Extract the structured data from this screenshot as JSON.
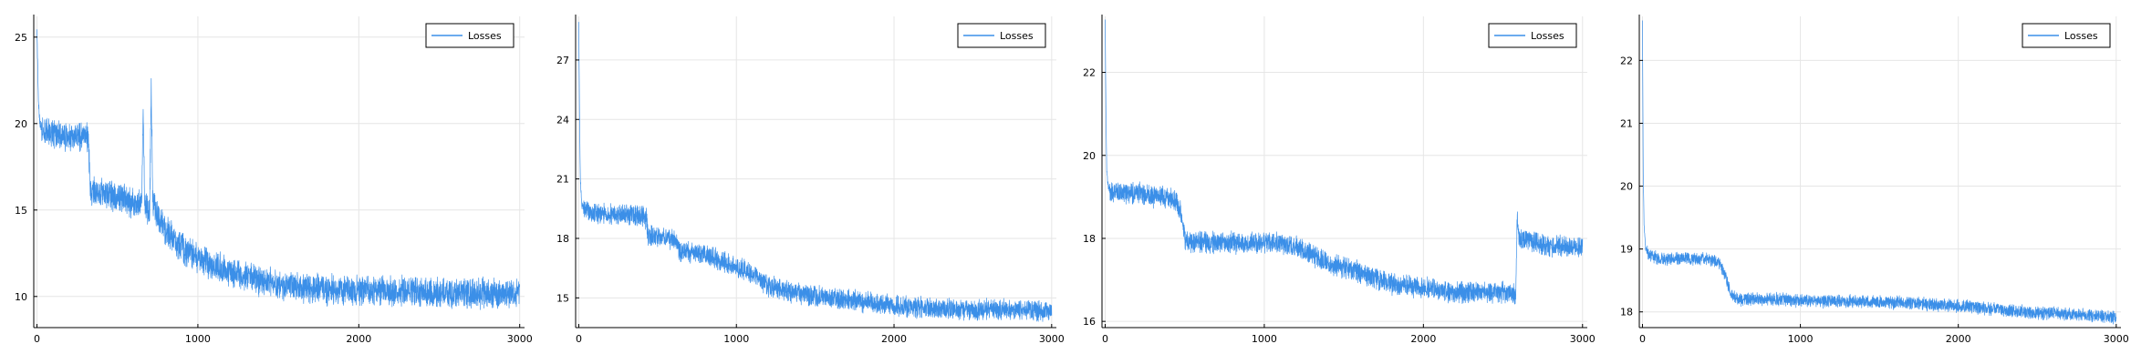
{
  "colors": {
    "series": "#3b8fe8",
    "grid": "#e6e6e6",
    "axis": "#000000"
  },
  "chart_data": [
    {
      "type": "line",
      "title": "",
      "xlabel": "",
      "ylabel": "",
      "xlim": [
        -20,
        3030
      ],
      "ylim": [
        8.2,
        26.2
      ],
      "xticks": [
        0,
        1000,
        2000,
        3000
      ],
      "xtick_labels": [
        "0",
        "1000",
        "2000",
        "3000"
      ],
      "yticks": [
        10,
        15,
        20,
        25
      ],
      "ytick_labels": [
        "10",
        "15",
        "20",
        "25"
      ],
      "grid": true,
      "legend": {
        "position": "top-right",
        "entries": [
          "Losses"
        ]
      },
      "series": [
        {
          "name": "Losses",
          "x": [
            0,
            5,
            10,
            20,
            40,
            80,
            150,
            250,
            320,
            330,
            400,
            500,
            600,
            650,
            660,
            670,
            700,
            710,
            720,
            740,
            800,
            900,
            1000,
            1100,
            1200,
            1300,
            1400,
            1600,
            1800,
            2000,
            2200,
            2400,
            2600,
            2800,
            3000
          ],
          "y": [
            25.3,
            23,
            21,
            19.8,
            19.6,
            19.4,
            19.3,
            19.2,
            19.2,
            16.2,
            16.0,
            15.8,
            15.4,
            15.2,
            20.8,
            15.2,
            15.0,
            22.1,
            15.5,
            14.8,
            13.8,
            12.8,
            12.2,
            11.8,
            11.4,
            11.1,
            10.9,
            10.6,
            10.4,
            10.3,
            10.3,
            10.2,
            10.2,
            10.2,
            10.2
          ],
          "noise": 1.0
        }
      ]
    },
    {
      "type": "line",
      "title": "",
      "xlabel": "",
      "ylabel": "",
      "xlim": [
        -20,
        3030
      ],
      "ylim": [
        13.5,
        29.2
      ],
      "xticks": [
        0,
        1000,
        2000,
        3000
      ],
      "xtick_labels": [
        "0",
        "1000",
        "2000",
        "3000"
      ],
      "yticks": [
        15,
        18,
        21,
        24,
        27
      ],
      "ytick_labels": [
        "15",
        "18",
        "21",
        "24",
        "27"
      ],
      "grid": true,
      "legend": {
        "position": "top-right",
        "entries": [
          "Losses"
        ]
      },
      "series": [
        {
          "name": "Losses",
          "x": [
            0,
            5,
            10,
            20,
            50,
            100,
            200,
            300,
            400,
            430,
            440,
            460,
            500,
            600,
            640,
            700,
            800,
            900,
            1000,
            1100,
            1200,
            1400,
            1600,
            1800,
            2000,
            2200,
            2400,
            2600,
            2800,
            3000
          ],
          "y": [
            28.8,
            24,
            21,
            19.6,
            19.4,
            19.3,
            19.2,
            19.2,
            19.1,
            19.0,
            18.0,
            18.1,
            18.1,
            18.0,
            17.4,
            17.3,
            17.2,
            16.9,
            16.6,
            16.2,
            15.6,
            15.2,
            15.0,
            14.8,
            14.6,
            14.5,
            14.4,
            14.4,
            14.4,
            14.3
          ],
          "noise": 0.6
        }
      ]
    },
    {
      "type": "line",
      "title": "",
      "xlabel": "",
      "ylabel": "",
      "xlim": [
        -20,
        3030
      ],
      "ylim": [
        15.85,
        23.35
      ],
      "xticks": [
        0,
        1000,
        2000,
        3000
      ],
      "xtick_labels": [
        "0",
        "1000",
        "2000",
        "3000"
      ],
      "yticks": [
        16,
        18,
        20,
        22
      ],
      "ytick_labels": [
        "16",
        "18",
        "20",
        "22"
      ],
      "grid": true,
      "legend": {
        "position": "top-right",
        "entries": [
          "Losses"
        ]
      },
      "series": [
        {
          "name": "Losses",
          "x": [
            0,
            5,
            10,
            20,
            50,
            100,
            200,
            300,
            400,
            450,
            480,
            500,
            520,
            600,
            800,
            1000,
            1200,
            1300,
            1400,
            1600,
            1800,
            2000,
            2200,
            2400,
            2550,
            2580,
            2590,
            2600,
            2700,
            2800,
            3000
          ],
          "y": [
            23.2,
            21,
            19.6,
            19.2,
            19.1,
            19.1,
            19.1,
            19.0,
            19.0,
            18.9,
            18.6,
            18.0,
            17.9,
            17.9,
            17.9,
            17.9,
            17.8,
            17.6,
            17.4,
            17.2,
            16.9,
            16.8,
            16.7,
            16.7,
            16.7,
            16.6,
            18.6,
            18.0,
            17.9,
            17.8,
            17.8
          ],
          "noise": 0.3
        }
      ]
    },
    {
      "type": "line",
      "title": "",
      "xlabel": "",
      "ylabel": "",
      "xlim": [
        -20,
        3030
      ],
      "ylim": [
        17.75,
        22.7
      ],
      "xticks": [
        0,
        1000,
        2000,
        3000
      ],
      "xtick_labels": [
        "0",
        "1000",
        "2000",
        "3000"
      ],
      "yticks": [
        18,
        19,
        20,
        21,
        22
      ],
      "ytick_labels": [
        "18",
        "19",
        "20",
        "21",
        "22"
      ],
      "grid": true,
      "legend": {
        "position": "top-right",
        "entries": [
          "Losses"
        ]
      },
      "series": [
        {
          "name": "Losses",
          "x": [
            0,
            5,
            10,
            20,
            50,
            100,
            200,
            300,
            400,
            480,
            520,
            560,
            600,
            700,
            800,
            1000,
            1200,
            1400,
            1600,
            1800,
            2000,
            2200,
            2400,
            2600,
            2800,
            3000
          ],
          "y": [
            22.6,
            20.2,
            19.4,
            19.0,
            18.9,
            18.85,
            18.85,
            18.85,
            18.85,
            18.8,
            18.6,
            18.3,
            18.2,
            18.2,
            18.2,
            18.18,
            18.17,
            18.16,
            18.15,
            18.12,
            18.1,
            18.05,
            18.0,
            17.98,
            17.95,
            17.92
          ],
          "noise": 0.12
        }
      ]
    }
  ]
}
